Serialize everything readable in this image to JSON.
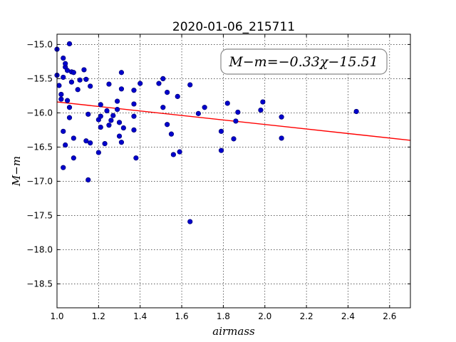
{
  "chart_data": {
    "type": "scatter",
    "title": "2020-01-06_215711",
    "xlabel": "airmass",
    "ylabel": "M−m",
    "annotation": "M−m=−0.33χ−15.51",
    "xlim": [
      1.0,
      2.7
    ],
    "ylim": [
      -18.85,
      -14.85
    ],
    "xticks": [
      1.0,
      1.2,
      1.4,
      1.6,
      1.8,
      2.0,
      2.2,
      2.4,
      2.6
    ],
    "xtick_labels": [
      "1.0",
      "1.2",
      "1.4",
      "1.6",
      "1.8",
      "2.0",
      "2.2",
      "2.4",
      "2.6"
    ],
    "yticks": [
      -15.0,
      -15.5,
      -16.0,
      -16.5,
      -17.0,
      -17.5,
      -18.0,
      -18.5
    ],
    "ytick_labels": [
      "−15.0",
      "−15.5",
      "−16.0",
      "−16.5",
      "−17.0",
      "−17.5",
      "−18.0",
      "−18.5"
    ],
    "grid": true,
    "fit": {
      "slope": -0.33,
      "intercept": -15.51,
      "color": "#ff0000"
    },
    "marker_color": "#0000cc",
    "points": [
      [
        1.0,
        -15.07
      ],
      [
        1.0,
        -15.45
      ],
      [
        1.01,
        -15.6
      ],
      [
        1.02,
        -15.73
      ],
      [
        1.02,
        -15.8
      ],
      [
        1.03,
        -15.2
      ],
      [
        1.03,
        -15.48
      ],
      [
        1.03,
        -16.27
      ],
      [
        1.03,
        -16.8
      ],
      [
        1.04,
        -15.33
      ],
      [
        1.04,
        -15.28
      ],
      [
        1.04,
        -16.47
      ],
      [
        1.05,
        -15.82
      ],
      [
        1.05,
        -15.38
      ],
      [
        1.06,
        -14.99
      ],
      [
        1.06,
        -15.92
      ],
      [
        1.06,
        -16.07
      ],
      [
        1.07,
        -15.55
      ],
      [
        1.07,
        -15.4
      ],
      [
        1.08,
        -15.41
      ],
      [
        1.08,
        -16.37
      ],
      [
        1.08,
        -16.66
      ],
      [
        1.1,
        -15.66
      ],
      [
        1.11,
        -15.52
      ],
      [
        1.13,
        -15.37
      ],
      [
        1.14,
        -15.51
      ],
      [
        1.14,
        -16.41
      ],
      [
        1.15,
        -16.02
      ],
      [
        1.15,
        -16.98
      ],
      [
        1.16,
        -15.61
      ],
      [
        1.16,
        -16.44
      ],
      [
        1.2,
        -16.1
      ],
      [
        1.2,
        -16.58
      ],
      [
        1.21,
        -16.05
      ],
      [
        1.21,
        -15.88
      ],
      [
        1.21,
        -16.21
      ],
      [
        1.23,
        -16.45
      ],
      [
        1.24,
        -15.97
      ],
      [
        1.25,
        -15.58
      ],
      [
        1.25,
        -16.18
      ],
      [
        1.26,
        -16.11
      ],
      [
        1.27,
        -16.04
      ],
      [
        1.29,
        -15.83
      ],
      [
        1.29,
        -15.95
      ],
      [
        1.3,
        -16.34
      ],
      [
        1.3,
        -16.14
      ],
      [
        1.31,
        -15.41
      ],
      [
        1.31,
        -15.65
      ],
      [
        1.31,
        -16.43
      ],
      [
        1.32,
        -16.22
      ],
      [
        1.37,
        -15.67
      ],
      [
        1.37,
        -15.87
      ],
      [
        1.37,
        -16.05
      ],
      [
        1.37,
        -16.25
      ],
      [
        1.38,
        -16.66
      ],
      [
        1.4,
        -15.57
      ],
      [
        1.49,
        -15.57
      ],
      [
        1.51,
        -15.5
      ],
      [
        1.51,
        -15.92
      ],
      [
        1.53,
        -15.7
      ],
      [
        1.53,
        -16.17
      ],
      [
        1.55,
        -16.31
      ],
      [
        1.56,
        -16.61
      ],
      [
        1.58,
        -15.76
      ],
      [
        1.59,
        -16.57
      ],
      [
        1.64,
        -15.59
      ],
      [
        1.64,
        -17.59
      ],
      [
        1.68,
        -16.01
      ],
      [
        1.71,
        -15.92
      ],
      [
        1.79,
        -16.27
      ],
      [
        1.79,
        -16.55
      ],
      [
        1.82,
        -15.86
      ],
      [
        1.85,
        -16.38
      ],
      [
        1.86,
        -16.12
      ],
      [
        1.87,
        -15.99
      ],
      [
        1.98,
        -15.96
      ],
      [
        1.99,
        -15.84
      ],
      [
        2.08,
        -16.06
      ],
      [
        2.08,
        -16.37
      ],
      [
        2.44,
        -15.98
      ]
    ]
  }
}
